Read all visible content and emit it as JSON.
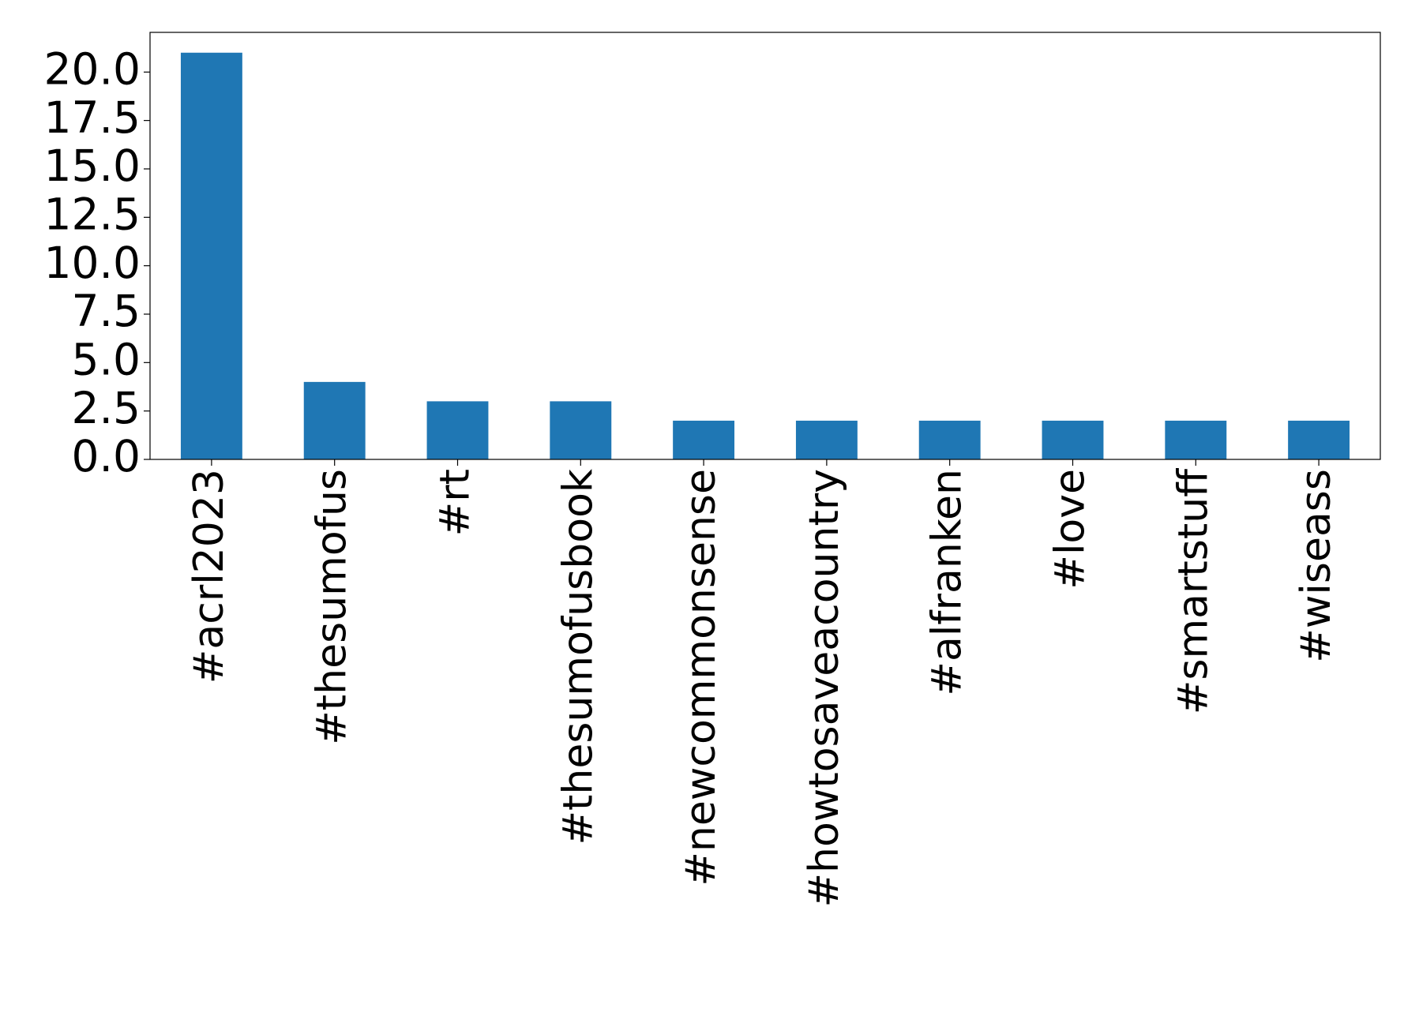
{
  "chart_data": {
    "type": "bar",
    "categories": [
      "#acrl2023",
      "#thesumofus",
      "#rt",
      "#thesumofusbook",
      "#newcommonsense",
      "#howtosaveacountry",
      "#alfranken",
      "#love",
      "#smartstuff",
      "#wiseass"
    ],
    "values": [
      21,
      4,
      3,
      3,
      2,
      2,
      2,
      2,
      2,
      2
    ],
    "color": "#1f77b4",
    "ylim": [
      0,
      22.05
    ],
    "yticks": [
      {
        "value": 0,
        "label": "0.0"
      },
      {
        "value": 2.5,
        "label": "2.5"
      },
      {
        "value": 5,
        "label": "5.0"
      },
      {
        "value": 7.5,
        "label": "7.5"
      },
      {
        "value": 10,
        "label": "10.0"
      },
      {
        "value": 12.5,
        "label": "12.5"
      },
      {
        "value": 15,
        "label": "15.0"
      },
      {
        "value": 17.5,
        "label": "17.5"
      },
      {
        "value": 20,
        "label": "20.0"
      }
    ],
    "grid": false
  }
}
